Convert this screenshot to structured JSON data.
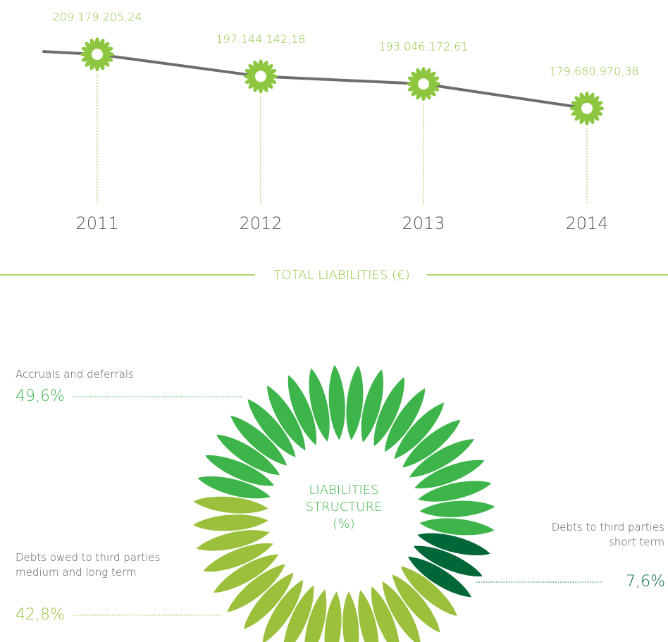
{
  "chart_data": [
    {
      "type": "line",
      "title": "TOTAL LIABILITIES (€)",
      "categories": [
        "2011",
        "2012",
        "2013",
        "2014"
      ],
      "values": [
        209179205.24,
        197144142.18,
        193046172.61,
        179680970.38
      ],
      "value_labels": [
        "209.179.205,24",
        "197.144.142,18",
        "193.046.172,61",
        "179.680.970,38"
      ],
      "ylim": [
        170000000,
        215000000
      ],
      "color": "#8dc63f",
      "line_color": "#6d6e70"
    },
    {
      "type": "pie",
      "title": [
        "LIABILITIES",
        "STRUCTURE",
        "(%)"
      ],
      "categories": [
        "Accruals and deferrals",
        "Debts to third parties short term",
        "Debts owed to third parties medium and long term"
      ],
      "values": [
        49.6,
        7.6,
        42.8
      ],
      "value_labels": [
        "49,6%",
        "7,6%",
        "42,8%"
      ],
      "colors": [
        "#3db54a",
        "#006838",
        "#9bc03b"
      ]
    }
  ]
}
